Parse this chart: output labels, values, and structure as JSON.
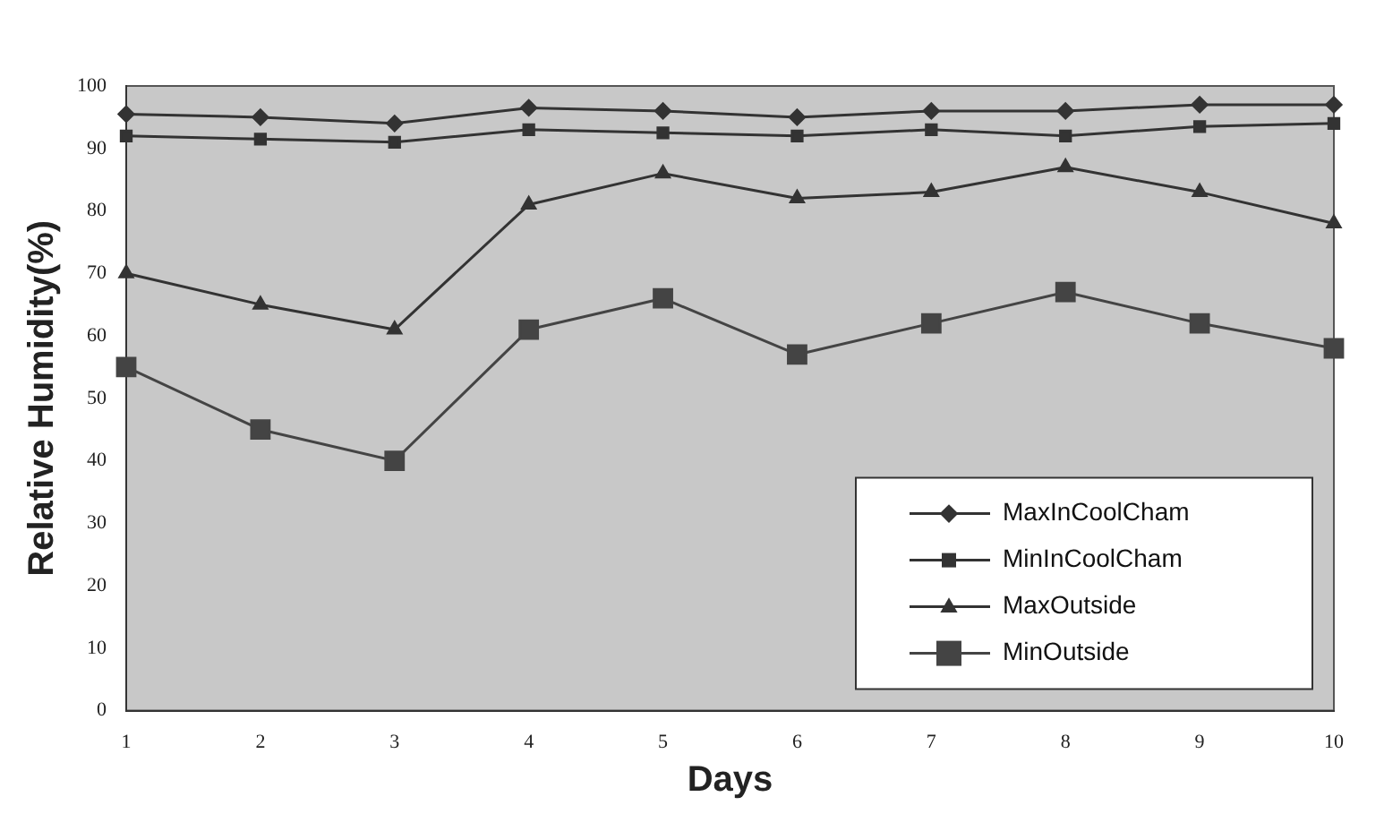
{
  "chart_data": {
    "type": "line",
    "xlabel": "Days",
    "ylabel": "Relative Humidity(%)",
    "categories": [
      "1",
      "2",
      "3",
      "4",
      "5",
      "6",
      "7",
      "8",
      "9",
      "10"
    ],
    "series": [
      {
        "name": "MaxInCoolCham",
        "color": "#333333",
        "marker": "diamond",
        "values": [
          95.5,
          95,
          94,
          96.5,
          96,
          95,
          96,
          96,
          97,
          97
        ]
      },
      {
        "name": "MinInCoolCham",
        "color": "#333333",
        "marker": "square",
        "values": [
          92,
          91.5,
          91,
          93,
          92.5,
          92,
          93,
          92,
          93.5,
          94
        ]
      },
      {
        "name": "MaxOutside",
        "color": "#333333",
        "marker": "triangle",
        "values": [
          70,
          65,
          61,
          81,
          86,
          82,
          83,
          87,
          83,
          78
        ]
      },
      {
        "name": "MinOutside",
        "color": "#444444",
        "marker": "square",
        "values": [
          55,
          45,
          40,
          61,
          66,
          57,
          62,
          67,
          62,
          58
        ]
      }
    ],
    "ylim": [
      0,
      100
    ],
    "yticks": [
      0,
      10,
      20,
      30,
      40,
      50,
      60,
      70,
      80,
      90,
      100
    ],
    "grid": false,
    "legend": "bottom right",
    "line_style": "solid"
  }
}
